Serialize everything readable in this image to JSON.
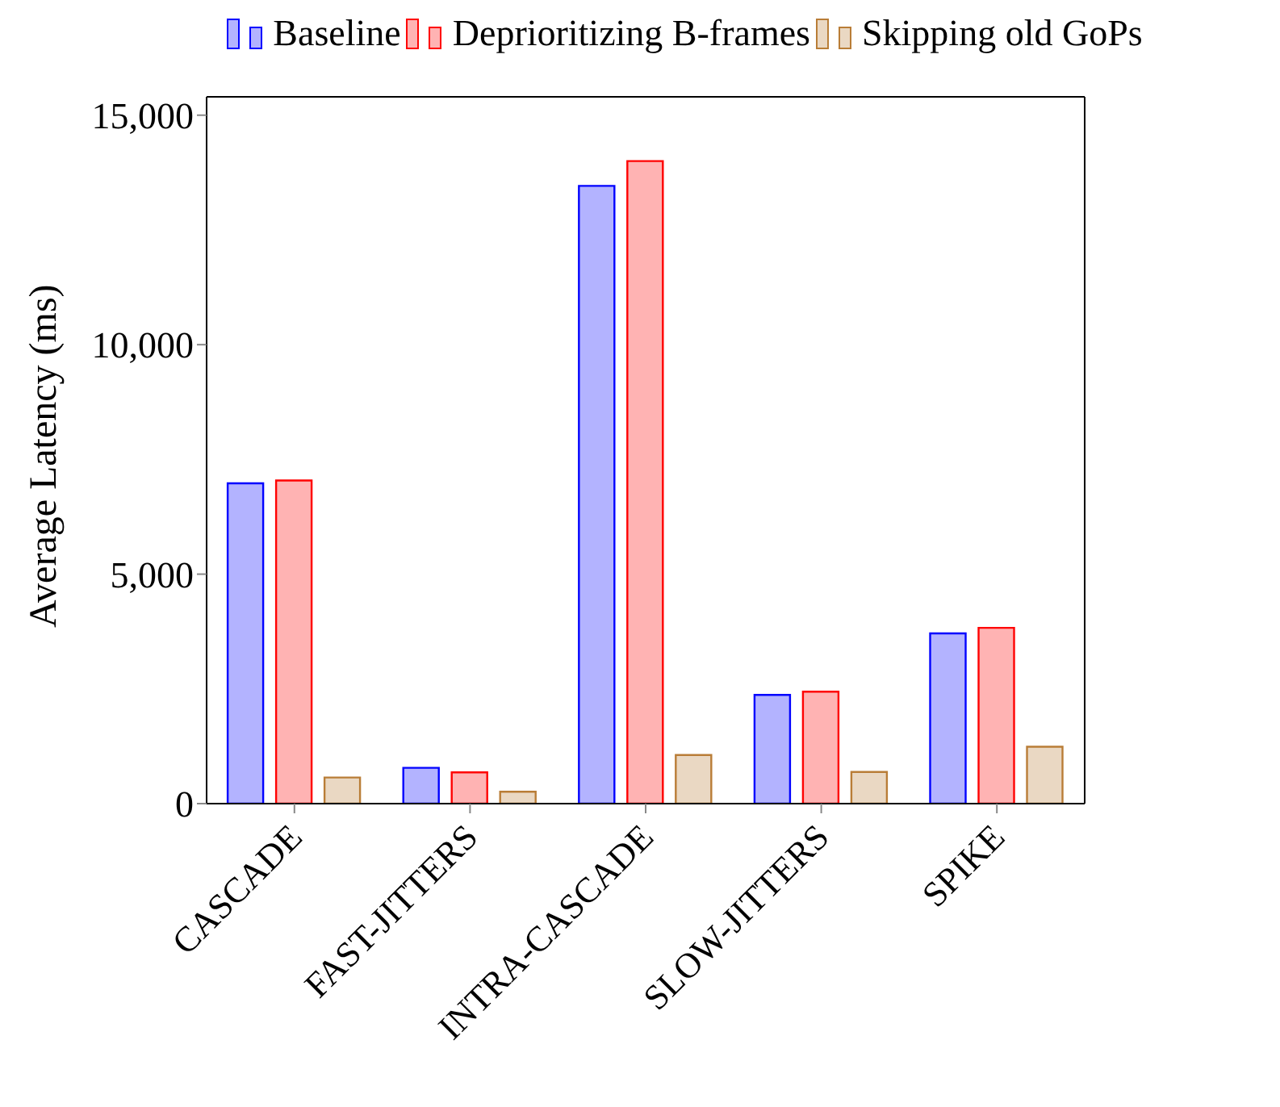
{
  "chart_data": {
    "type": "bar",
    "ylabel": "Average Latency (ms)",
    "categories": [
      "CASCADE",
      "FAST-JITTERS",
      "INTRA-CASCADE",
      "SLOW-JITTERS",
      "SPIKE"
    ],
    "series": [
      {
        "name": "Baseline",
        "color": "#b3b3ff",
        "values": [
          6980,
          780,
          13460,
          2370,
          3710
        ]
      },
      {
        "name": "Deprioritizing B-frames",
        "color": "#ffb3b3",
        "values": [
          7040,
          680,
          14000,
          2440,
          3830
        ]
      },
      {
        "name": "Skipping old GoPs",
        "color": "#ead8c3",
        "values": [
          570,
          260,
          1060,
          690,
          1240
        ]
      }
    ],
    "ylim": [
      0,
      15400
    ],
    "yticks": [
      {
        "value": 0,
        "label": "0"
      },
      {
        "value": 5000,
        "label": "5,000"
      },
      {
        "value": 10000,
        "label": "10,000"
      },
      {
        "value": 15000,
        "label": "15,000"
      }
    ],
    "legend": "top"
  }
}
